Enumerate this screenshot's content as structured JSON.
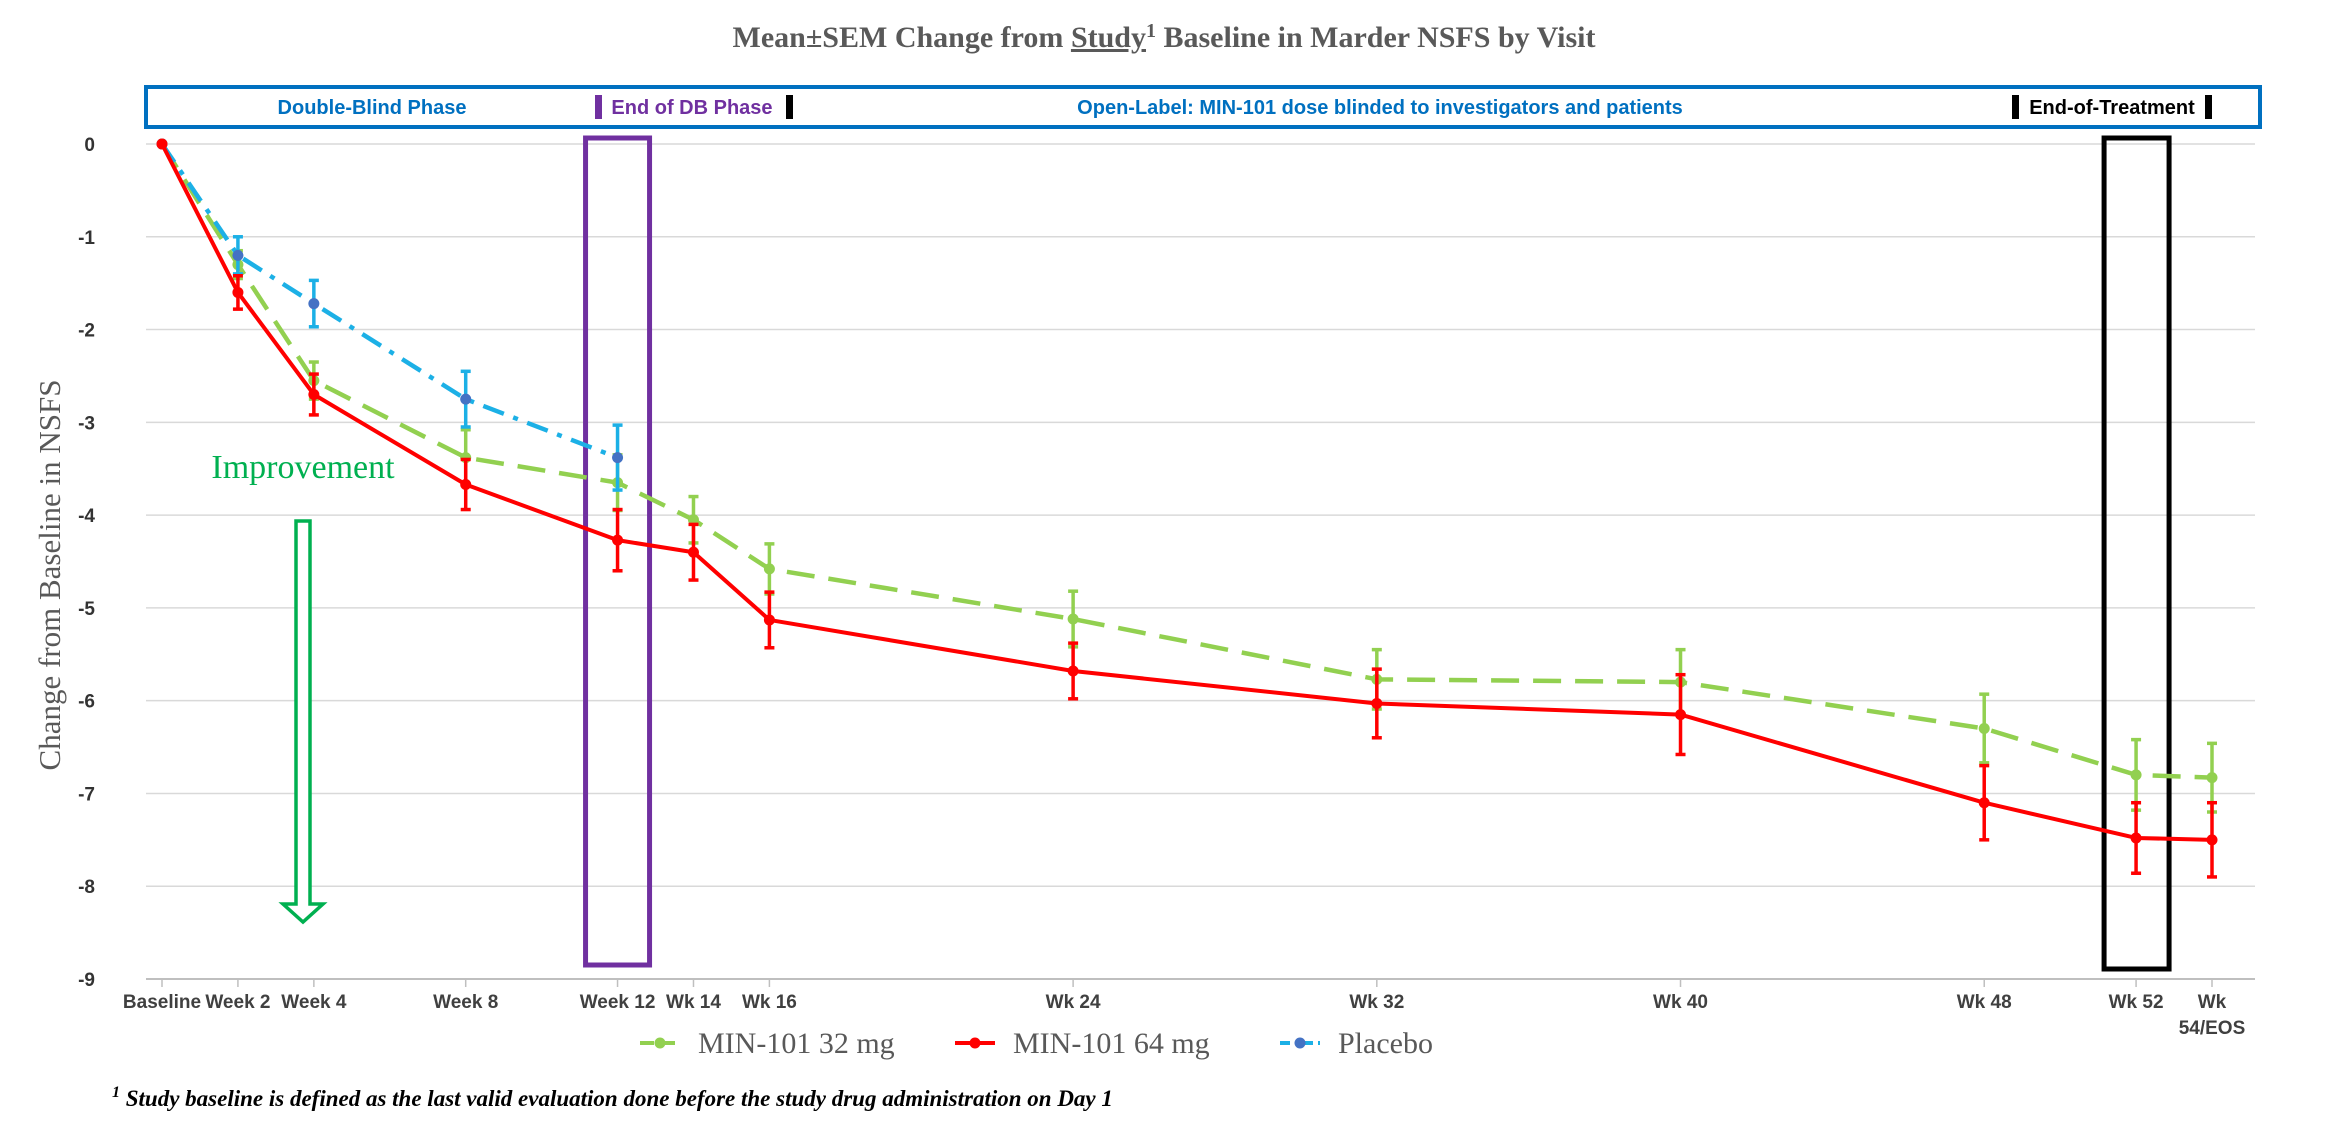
{
  "colors": {
    "mg32": "#92D050",
    "mg64": "#FF0000",
    "placebo": "#1CB0E6",
    "placebo_marker": "#4472C4",
    "phase_box": "#0070C0",
    "db_end_box": "#7030A0",
    "eot_box": "#000000",
    "improvement": "#00B050"
  },
  "chart_data": {
    "type": "line",
    "title_parts": {
      "before": "Mean±SEM Change from ",
      "underlined": "Study",
      "superscript": "1",
      "after": " Baseline in Marder NSFS by Visit"
    },
    "ylabel": "Change from Baseline in NSFS",
    "ylim": [
      -9,
      0
    ],
    "yticks": [
      0,
      -1,
      -2,
      -3,
      -4,
      -5,
      -6,
      -7,
      -8,
      -9
    ],
    "x_weeks": [
      0,
      2,
      4,
      8,
      12,
      14,
      16,
      24,
      32,
      40,
      48,
      52,
      54
    ],
    "x_labels": [
      "Baseline",
      "Week 2",
      "Week 4",
      "Week 8",
      "Week 12",
      "Wk 14",
      "Wk 16",
      "Wk 24",
      "Wk 32",
      "Wk 40",
      "Wk 48",
      "Wk 52",
      "Wk 54/EOS"
    ],
    "series": [
      {
        "name": "MIN-101 32 mg",
        "style": "dashed",
        "color_key": "mg32",
        "x": [
          0,
          2,
          4,
          8,
          12,
          14,
          16,
          24,
          32,
          40,
          48,
          52,
          54
        ],
        "y": [
          0,
          -1.3,
          -2.55,
          -3.38,
          -3.65,
          -4.05,
          -4.58,
          -5.12,
          -5.77,
          -5.8,
          -6.3,
          -6.8,
          -6.83
        ],
        "sem": [
          0,
          0.15,
          0.2,
          0.3,
          0.3,
          0.25,
          0.27,
          0.3,
          0.32,
          0.35,
          0.37,
          0.38,
          0.37
        ]
      },
      {
        "name": "MIN-101 64 mg",
        "style": "solid",
        "color_key": "mg64",
        "x": [
          0,
          2,
          4,
          8,
          12,
          14,
          16,
          24,
          32,
          40,
          48,
          52,
          54
        ],
        "y": [
          0,
          -1.6,
          -2.7,
          -3.67,
          -4.27,
          -4.4,
          -5.13,
          -5.68,
          -6.03,
          -6.15,
          -7.1,
          -7.48,
          -7.5
        ],
        "sem": [
          0,
          0.18,
          0.22,
          0.27,
          0.33,
          0.3,
          0.3,
          0.3,
          0.37,
          0.43,
          0.4,
          0.38,
          0.4
        ]
      },
      {
        "name": "Placebo",
        "style": "dashdot",
        "color_key": "placebo",
        "x": [
          0,
          2,
          4,
          8,
          12
        ],
        "y": [
          0,
          -1.2,
          -1.72,
          -2.75,
          -3.38
        ],
        "sem": [
          0,
          0.2,
          0.25,
          0.3,
          0.35
        ]
      }
    ],
    "phase_labels": {
      "double_blind": "Double-Blind Phase",
      "end_db": "End of DB Phase",
      "open_label": "Open-Label: MIN-101 dose blinded to investigators and patients",
      "end_treatment": "End-of-Treatment"
    },
    "highlight_weeks": {
      "end_db": 12,
      "end_treatment": 52
    },
    "annotation": "Improvement",
    "legend_placement": "bottom",
    "grid": true
  },
  "footnote": {
    "marker": "1",
    "text": " Study baseline is defined as the last valid evaluation done before the study drug administration on Day 1"
  }
}
